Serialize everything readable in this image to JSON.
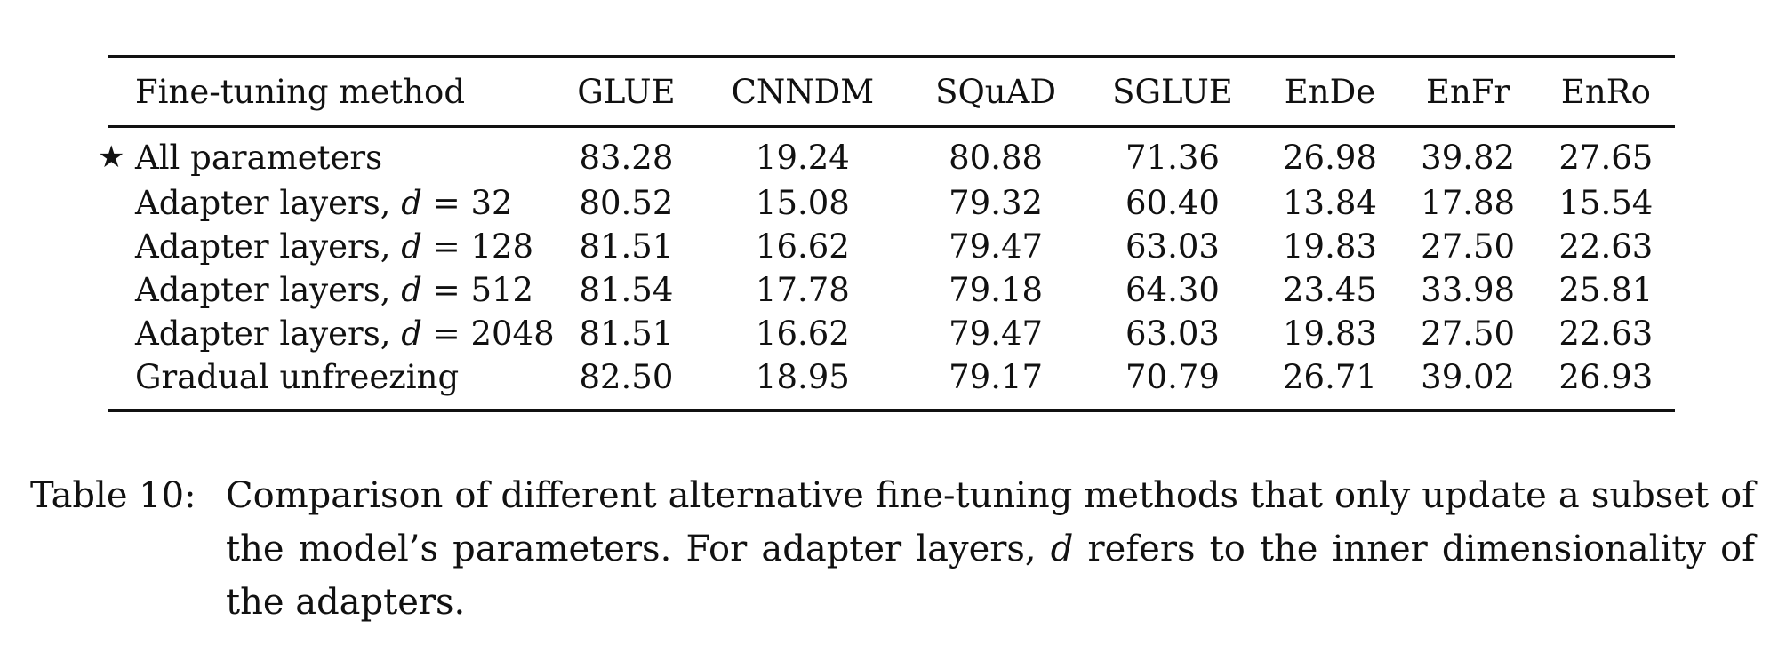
{
  "table": {
    "headers": [
      "Fine-tuning method",
      "GLUE",
      "CNNDM",
      "SQuAD",
      "SGLUE",
      "EnDe",
      "EnFr",
      "EnRo"
    ],
    "rows": [
      {
        "star": "★",
        "method": "All parameters",
        "values": [
          "83.28",
          "19.24",
          "80.88",
          "71.36",
          "26.98",
          "39.82",
          "27.65"
        ]
      },
      {
        "prefix": "Adapter layers, ",
        "var": "d",
        "suffix": " = 32",
        "values": [
          "80.52",
          "15.08",
          "79.32",
          "60.40",
          "13.84",
          "17.88",
          "15.54"
        ]
      },
      {
        "prefix": "Adapter layers, ",
        "var": "d",
        "suffix": " = 128",
        "values": [
          "81.51",
          "16.62",
          "79.47",
          "63.03",
          "19.83",
          "27.50",
          "22.63"
        ]
      },
      {
        "prefix": "Adapter layers, ",
        "var": "d",
        "suffix": " = 512",
        "values": [
          "81.54",
          "17.78",
          "79.18",
          "64.30",
          "23.45",
          "33.98",
          "25.81"
        ]
      },
      {
        "prefix": "Adapter layers, ",
        "var": "d",
        "suffix": " = 2048",
        "values": [
          "81.51",
          "16.62",
          "79.47",
          "63.03",
          "19.83",
          "27.50",
          "22.63"
        ]
      },
      {
        "method": "Gradual unfreezing",
        "values": [
          "82.50",
          "18.95",
          "79.17",
          "70.79",
          "26.71",
          "39.02",
          "26.93"
        ]
      }
    ]
  },
  "caption": {
    "label": "Table 10:",
    "text_before": "Comparison of different alternative fine-tuning methods that only update a subset of the model’s parameters. For adapter layers, ",
    "var": "d",
    "text_after": " refers to the inner dimensionality of the adapters."
  }
}
